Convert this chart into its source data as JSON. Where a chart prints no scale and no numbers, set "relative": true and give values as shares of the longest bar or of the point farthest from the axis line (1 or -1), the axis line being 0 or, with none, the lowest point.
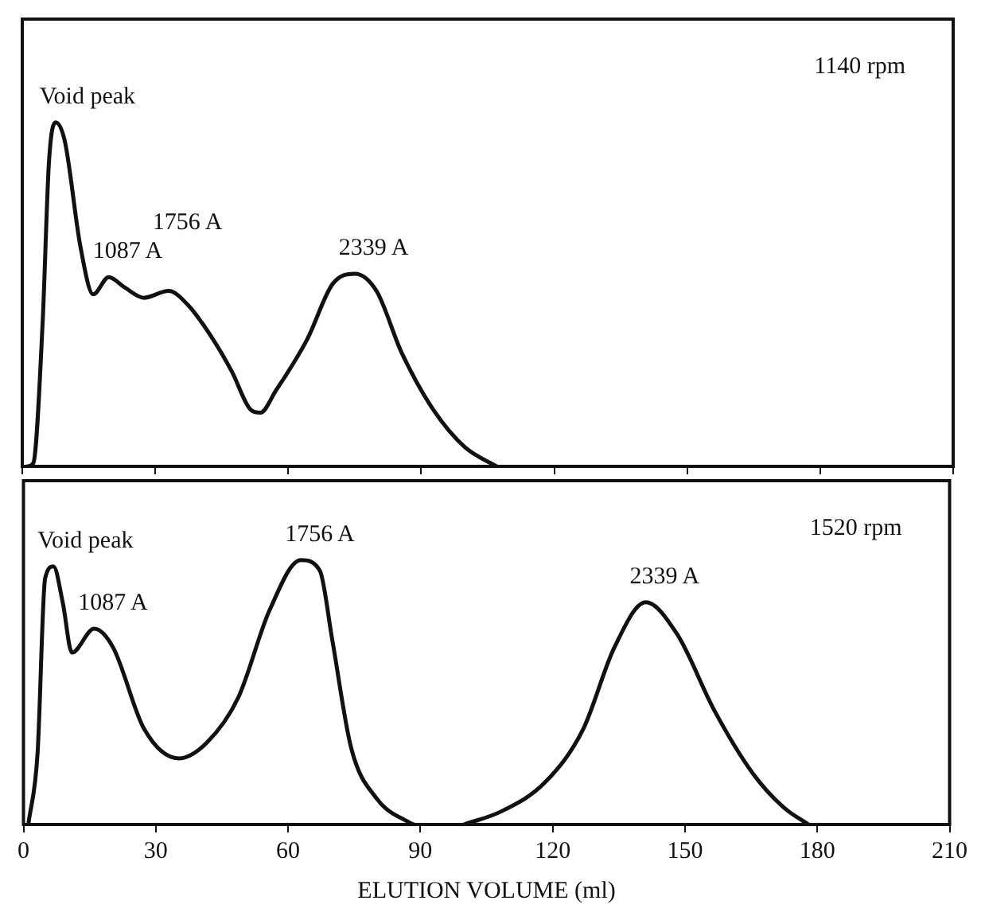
{
  "chart_data": [
    {
      "type": "line",
      "relative": true,
      "color": "#111111",
      "marker": "none",
      "line_style": "solid",
      "grid": false,
      "legend": false,
      "tick_labels": false,
      "x": [
        1.1,
        2.5,
        4.6,
        6.0,
        7.5,
        9.6,
        13.1,
        16.0,
        19.5,
        23.1,
        27.4,
        33.0,
        37.3,
        43.0,
        47.3,
        51.5,
        53.7,
        57.2,
        64.3,
        70.0,
        75.0,
        79.9,
        85.6,
        92.7,
        99.9,
        107
      ],
      "values": [
        0,
        0.01,
        0.42,
        0.88,
        1,
        0.945,
        0.64,
        0.5,
        0.55,
        0.52,
        0.49,
        0.51,
        0.47,
        0.37,
        0.275,
        0.165,
        0.156,
        0.22,
        0.37,
        0.53,
        0.56,
        0.51,
        0.33,
        0.165,
        0.055,
        0
      ],
      "xlim": [
        0,
        210
      ],
      "xticks": [
        0,
        30,
        60,
        90,
        120,
        150,
        180,
        210
      ],
      "annotations": [
        "1140 rpm",
        {
          "text": "Void peak",
          "x": 7.5,
          "y": 1
        },
        {
          "text": "1087 A",
          "x": 19.5,
          "y": 0.55
        },
        {
          "text": "1756 A",
          "x": 33.0,
          "y": 0.51
        },
        {
          "text": "2339 A",
          "x": 75.0,
          "y": 0.56
        }
      ]
    },
    {
      "type": "line",
      "relative": true,
      "color": "#111111",
      "marker": "none",
      "line_style": "solid",
      "grid": false,
      "legend": false,
      "tick_labels": "x",
      "xlabel": "ELUTION VOLUME (ml)",
      "x": [
        1.1,
        3.2,
        4.9,
        6.8,
        8.9,
        11.0,
        16.0,
        20.3,
        27.4,
        35.2,
        41.6,
        48.7,
        55.8,
        62.9,
        67.2,
        70.0,
        74.3,
        80.0,
        87.8,
        88.5,
        95,
        99.9,
        108.4,
        118.3,
        126.9,
        134.0,
        141.1,
        148.2,
        156.7,
        165.3,
        172.4,
        178.0
      ],
      "values": [
        0,
        0.27,
        0.93,
        0.976,
        0.84,
        0.65,
        0.74,
        0.67,
        0.36,
        0.25,
        0.31,
        0.48,
        0.81,
        1,
        0.96,
        0.7,
        0.29,
        0.1,
        0.005,
        0,
        null,
        0,
        0.05,
        0.16,
        0.36,
        0.67,
        0.84,
        0.72,
        0.43,
        0.195,
        0.064,
        0
      ],
      "xlim": [
        0,
        210
      ],
      "xticks": [
        0,
        30,
        60,
        90,
        120,
        150,
        180,
        210
      ],
      "annotations": [
        "1520 rpm",
        {
          "text": "Void peak",
          "x": 6.8,
          "y": 0.976
        },
        {
          "text": "1756 A",
          "x": 62.9,
          "y": 1
        },
        {
          "text": "1087 A",
          "x": 16.0,
          "y": 0.74
        },
        {
          "text": "2339 A",
          "x": 141.1,
          "y": 0.84
        }
      ]
    }
  ]
}
